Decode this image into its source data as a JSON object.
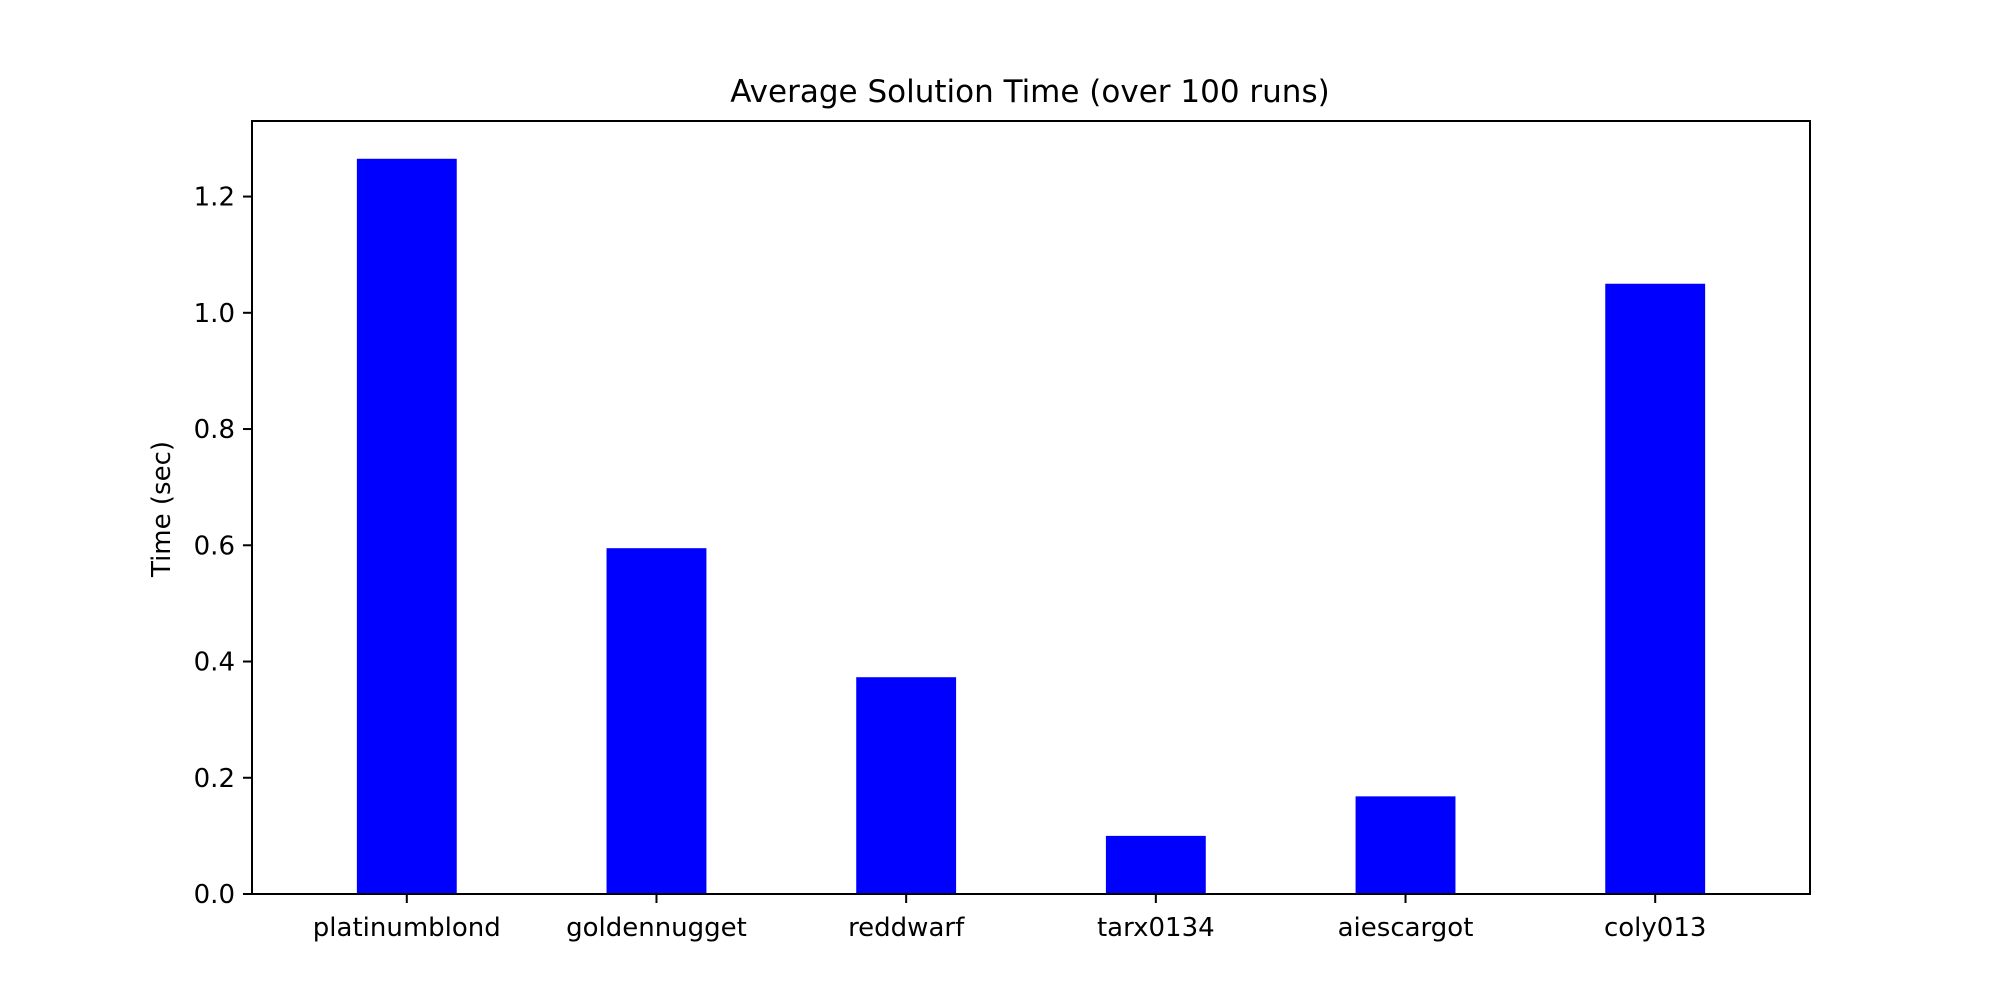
{
  "chart_data": {
    "type": "bar",
    "title": "Average Solution Time (over 100 runs)",
    "xlabel": "",
    "ylabel": "Time (sec)",
    "categories": [
      "platinumblond",
      "goldennugget",
      "reddwarf",
      "tarx0134",
      "aiescargot",
      "coly013"
    ],
    "values": [
      1.265,
      0.595,
      0.373,
      0.1,
      0.168,
      1.05
    ],
    "ylim": [
      0,
      1.33
    ],
    "yticks": [
      "0.0",
      "0.2",
      "0.4",
      "0.6",
      "0.8",
      "1.0",
      "1.2"
    ],
    "bar_color": "#0000ff",
    "grid": false,
    "legend": "none"
  }
}
